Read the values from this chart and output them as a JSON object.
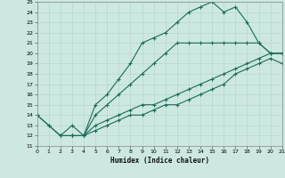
{
  "xlabel": "Humidex (Indice chaleur)",
  "xlim": [
    0,
    21
  ],
  "ylim": [
    11,
    25
  ],
  "xticks": [
    0,
    1,
    2,
    3,
    4,
    5,
    6,
    7,
    8,
    9,
    10,
    11,
    12,
    13,
    14,
    15,
    16,
    17,
    18,
    19,
    20,
    21
  ],
  "yticks": [
    11,
    12,
    13,
    14,
    15,
    16,
    17,
    18,
    19,
    20,
    21,
    22,
    23,
    24,
    25
  ],
  "bg_color": "#cce8e0",
  "grid_color": "#b8d8d0",
  "line_color": "#1a6b5a",
  "curve1_x": [
    0,
    1,
    2,
    3,
    4,
    5,
    6,
    7,
    8,
    9,
    10,
    11,
    12,
    13,
    14,
    15,
    16,
    17,
    18,
    19,
    20,
    21
  ],
  "curve1_y": [
    14,
    13,
    12,
    12,
    12,
    15,
    16,
    17.5,
    19,
    21,
    21.5,
    22,
    23,
    24,
    24.5,
    25,
    24,
    24.5,
    23,
    21,
    20,
    20
  ],
  "curve2_x": [
    0,
    1,
    2,
    3,
    4,
    5,
    6,
    7,
    8,
    9,
    10,
    11,
    12,
    13,
    14,
    15,
    16,
    17,
    18,
    19,
    20,
    21
  ],
  "curve2_y": [
    14,
    13,
    12,
    13,
    12,
    14,
    15,
    16,
    17,
    18,
    19,
    20,
    21,
    21,
    21,
    21,
    21,
    21,
    21,
    21,
    20,
    20
  ],
  "curve3_x": [
    2,
    3,
    4,
    5,
    6,
    7,
    8,
    9,
    10,
    11,
    12,
    13,
    14,
    15,
    16,
    17,
    18,
    19,
    20,
    21
  ],
  "curve3_y": [
    12,
    12,
    12,
    13,
    13.5,
    14,
    14.5,
    15,
    15,
    15.5,
    16,
    16.5,
    17,
    17.5,
    18,
    18.5,
    19,
    19.5,
    20,
    20
  ],
  "curve4_x": [
    3,
    4,
    5,
    6,
    7,
    8,
    9,
    10,
    11,
    12,
    13,
    14,
    15,
    16,
    17,
    18,
    19,
    20,
    21
  ],
  "curve4_y": [
    12,
    12,
    12.5,
    13,
    13.5,
    14,
    14,
    14.5,
    15,
    15,
    15.5,
    16,
    16.5,
    17,
    18,
    18.5,
    19,
    19.5,
    19
  ]
}
